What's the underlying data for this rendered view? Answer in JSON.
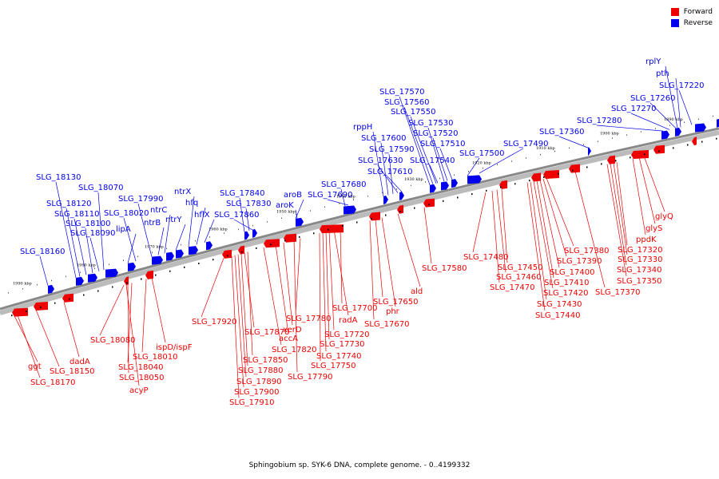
{
  "legend": [
    {
      "label": "Forward",
      "color": "#ee0000"
    },
    {
      "label": "Reverse",
      "color": "#0000ee"
    }
  ],
  "footer": "Sphingobium sp. SYK-6 DNA, complete genome. - 0..4199332",
  "colors": {
    "forward": "#ee0000",
    "reverse": "#0000ee",
    "backbone": "#888888",
    "ticks": "#000000"
  },
  "ticks": [
    "1990 kbp",
    "1980 kbp",
    "1970 kbp",
    "1960 kbp",
    "1950 kbp",
    "1940 kbp",
    "1930 kbp",
    "1920 kbp",
    "1910 kbp",
    "1900 kbp",
    "1890 kbp"
  ],
  "forward_labels": [
    "ggt",
    "SLG_18170",
    "SLG_18150",
    "dadA",
    "SLG_18080",
    "acyP",
    "SLG_18050",
    "SLG_18040",
    "SLG_18010",
    "ispD/ispF",
    "SLG_17920",
    "SLG_17910",
    "SLG_17900",
    "SLG_17890",
    "SLG_17880",
    "SLG_17870",
    "SLG_17850",
    "SLG_17820",
    "accA",
    "xerD",
    "SLG_17790",
    "SLG_17780",
    "SLG_17750",
    "SLG_17740",
    "SLG_17730",
    "SLG_17720",
    "radA",
    "SLG_17700",
    "SLG_17670",
    "SLG_17650",
    "phr",
    "ald",
    "SLG_17580",
    "SLG_17480",
    "SLG_17470",
    "SLG_17460",
    "SLG_17450",
    "SLG_17440",
    "SLG_17430",
    "SLG_17420",
    "SLG_17410",
    "SLG_17400",
    "SLG_17390",
    "SLG_17380",
    "SLG_17370",
    "SLG_17350",
    "SLG_17340",
    "SLG_17330",
    "SLG_17320",
    "ppdK",
    "glyS",
    "glyQ"
  ],
  "reverse_labels": [
    "SLG_18160",
    "SLG_18130",
    "SLG_18120",
    "SLG_18110",
    "SLG_18100",
    "SLG_18090",
    "SLG_18070",
    "SLG_18020",
    "lipA",
    "SLG_17990",
    "ntrB",
    "ntrC",
    "ntrY",
    "ntrX",
    "hfq",
    "hflX",
    "SLG_17840",
    "SLG_17830",
    "SLG_17860",
    "aroB",
    "aroK",
    "SLG_17680",
    "SLG_17690",
    "rppH",
    "SLG_17600",
    "SLG_17590",
    "SLG_17630",
    "SLG_17610",
    "SLG_17570",
    "SLG_17560",
    "SLG_17550",
    "SLG_17530",
    "SLG_17520",
    "SLG_17510",
    "SLG_17540",
    "SLG_17500",
    "SLG_17490",
    "SLG_17360",
    "SLG_17280",
    "SLG_17270",
    "SLG_17260",
    "SLG_17220",
    "pth",
    "rplY"
  ]
}
